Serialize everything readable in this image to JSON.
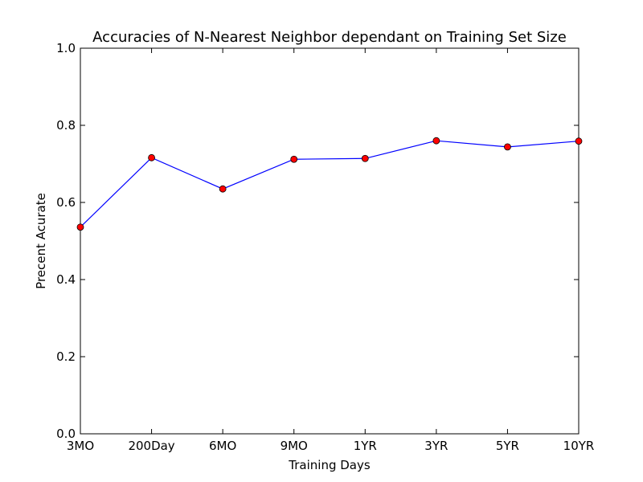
{
  "chart_data": {
    "type": "line",
    "title": "Accuracies of N-Nearest Neighbor dependant on Training Set Size",
    "xlabel": "Training Days",
    "ylabel": "Precent Acurate",
    "categories": [
      "3MO",
      "200Day",
      "6MO",
      "9MO",
      "1YR",
      "3YR",
      "5YR",
      "10YR"
    ],
    "series": [
      {
        "values": [
          0.536,
          0.716,
          0.635,
          0.712,
          0.714,
          0.76,
          0.744,
          0.759
        ],
        "line_color": "#0000ff",
        "marker_color": "#ff0000"
      }
    ],
    "ylim": [
      0.0,
      1.0
    ],
    "yticks": [
      "0.0",
      "0.2",
      "0.4",
      "0.6",
      "0.8",
      "1.0"
    ],
    "grid": false,
    "legend": "none"
  }
}
